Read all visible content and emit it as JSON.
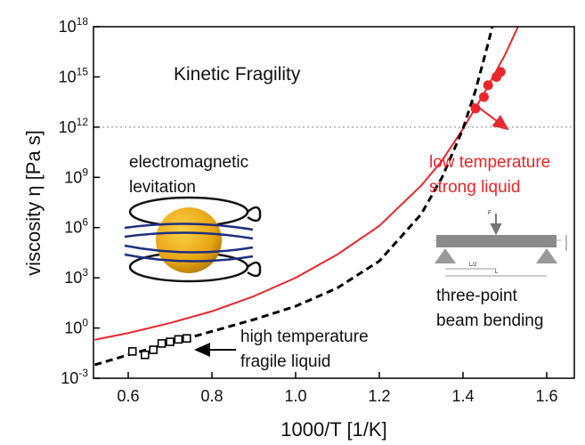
{
  "chart_data": {
    "type": "line",
    "xlabel": "1000/T [1/K]",
    "ylabel": "viscosity η [Pa s]",
    "log_y": true,
    "xlim": [
      0.517,
      1.666
    ],
    "ylim": [
      0.001,
      1e+18
    ],
    "xticks": [
      0.6,
      0.8,
      {
        "value": 1.0,
        "label": "1.0"
      },
      1.2,
      1.4,
      1.6
    ],
    "yticks": [
      {
        "value": 0.001,
        "label": "10",
        "exponent": "-3"
      },
      {
        "value": 1,
        "label": "10",
        "exponent": "0"
      },
      {
        "value": 1000,
        "label": "10",
        "exponent": "3"
      },
      {
        "value": 1000000,
        "label": "10",
        "exponent": "6"
      },
      {
        "value": 1000000000,
        "label": "10",
        "exponent": "9"
      },
      {
        "value": 1000000000000,
        "label": "10",
        "exponent": "12"
      },
      {
        "value": 1000000000000000.0,
        "label": "10",
        "exponent": "15"
      },
      {
        "value": 1e+18,
        "label": "10",
        "exponent": "18"
      }
    ],
    "reference_line": {
      "value": 1000000000000,
      "color": "#888888"
    },
    "series": [
      {
        "style": "solid",
        "color": "#e8262b",
        "x": [
          0.52,
          0.6,
          0.7,
          0.8,
          0.9,
          1.0,
          1.1,
          1.2,
          1.3,
          1.35,
          1.4,
          1.45,
          1.5,
          1.55
        ],
        "values": [
          0.2,
          0.5,
          2,
          10,
          79,
          1000,
          25000,
          1260000,
          320000000,
          10000000000,
          790000000000,
          100000000000000.0,
          2e+16,
          1e+19
        ]
      },
      {
        "style": "dashed",
        "color": "#000000",
        "x": [
          0.52,
          0.6,
          0.7,
          0.8,
          0.9,
          1.0,
          1.1,
          1.2,
          1.3,
          1.35,
          1.4,
          1.43,
          1.46,
          1.48
        ],
        "values": [
          0.0063,
          0.025,
          0.126,
          0.63,
          3.2,
          20,
          250,
          10000,
          6300000,
          1000000000,
          790000000000,
          160000000000000.0,
          1e+17,
          1e+19
        ]
      },
      {
        "style": "markers",
        "marker": "circle",
        "color": "#e8262b",
        "x": [
          1.43,
          1.45,
          1.46,
          1.48,
          1.49
        ],
        "values": [
          13000000000000,
          63000000000000,
          320000000000000.0,
          1000000000000000.0,
          2000000000000000.0
        ]
      },
      {
        "style": "markers",
        "marker": "square",
        "color": "#000000",
        "x": [
          0.61,
          0.64,
          0.66,
          0.68,
          0.7,
          0.72,
          0.74
        ],
        "values": [
          0.04,
          0.025,
          0.05,
          0.12,
          0.15,
          0.21,
          0.24
        ]
      }
    ],
    "annotations": [
      {
        "lines": [
          "Kinetic Fragility"
        ],
        "color": "#111111"
      },
      {
        "lines": [
          "electromagnetic",
          "levitation"
        ],
        "color": "#111111"
      },
      {
        "lines": [
          "low temperature",
          "strong liquid"
        ],
        "color": "#e8262b"
      },
      {
        "lines": [
          "three-point",
          "beam bending"
        ],
        "color": "#111111"
      },
      {
        "lines": [
          "high temperature",
          "fragile liquid"
        ],
        "color": "#111111"
      }
    ],
    "diagram_labels": [
      "F",
      "L/2",
      "L"
    ]
  }
}
